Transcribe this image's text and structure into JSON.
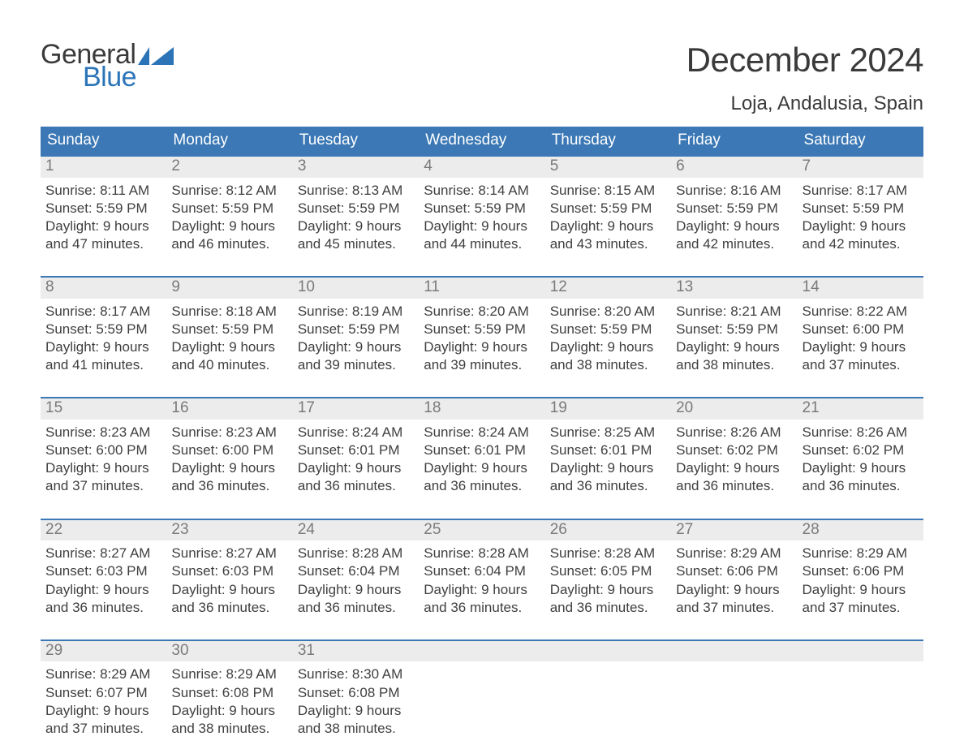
{
  "logo": {
    "word1": "General",
    "word2": "Blue",
    "text_color": "#3a3a3a",
    "blue_color": "#2b74b8",
    "flag_color": "#2b74b8"
  },
  "title": {
    "month_year": "December 2024",
    "location": "Loja, Andalusia, Spain",
    "title_fontsize": 42,
    "location_fontsize": 24,
    "text_color": "#3a3a3a"
  },
  "calendar": {
    "header_bg": "#3b78b5",
    "header_text_color": "#ffffff",
    "week_border_color": "#3b78b5",
    "daynum_bg": "#ececec",
    "daynum_color": "#7a7a7a",
    "body_text_color": "#3f3f3f",
    "days_of_week": [
      "Sunday",
      "Monday",
      "Tuesday",
      "Wednesday",
      "Thursday",
      "Friday",
      "Saturday"
    ],
    "weeks": [
      [
        {
          "n": "1",
          "sunrise": "Sunrise: 8:11 AM",
          "sunset": "Sunset: 5:59 PM",
          "dl1": "Daylight: 9 hours",
          "dl2": "and 47 minutes."
        },
        {
          "n": "2",
          "sunrise": "Sunrise: 8:12 AM",
          "sunset": "Sunset: 5:59 PM",
          "dl1": "Daylight: 9 hours",
          "dl2": "and 46 minutes."
        },
        {
          "n": "3",
          "sunrise": "Sunrise: 8:13 AM",
          "sunset": "Sunset: 5:59 PM",
          "dl1": "Daylight: 9 hours",
          "dl2": "and 45 minutes."
        },
        {
          "n": "4",
          "sunrise": "Sunrise: 8:14 AM",
          "sunset": "Sunset: 5:59 PM",
          "dl1": "Daylight: 9 hours",
          "dl2": "and 44 minutes."
        },
        {
          "n": "5",
          "sunrise": "Sunrise: 8:15 AM",
          "sunset": "Sunset: 5:59 PM",
          "dl1": "Daylight: 9 hours",
          "dl2": "and 43 minutes."
        },
        {
          "n": "6",
          "sunrise": "Sunrise: 8:16 AM",
          "sunset": "Sunset: 5:59 PM",
          "dl1": "Daylight: 9 hours",
          "dl2": "and 42 minutes."
        },
        {
          "n": "7",
          "sunrise": "Sunrise: 8:17 AM",
          "sunset": "Sunset: 5:59 PM",
          "dl1": "Daylight: 9 hours",
          "dl2": "and 42 minutes."
        }
      ],
      [
        {
          "n": "8",
          "sunrise": "Sunrise: 8:17 AM",
          "sunset": "Sunset: 5:59 PM",
          "dl1": "Daylight: 9 hours",
          "dl2": "and 41 minutes."
        },
        {
          "n": "9",
          "sunrise": "Sunrise: 8:18 AM",
          "sunset": "Sunset: 5:59 PM",
          "dl1": "Daylight: 9 hours",
          "dl2": "and 40 minutes."
        },
        {
          "n": "10",
          "sunrise": "Sunrise: 8:19 AM",
          "sunset": "Sunset: 5:59 PM",
          "dl1": "Daylight: 9 hours",
          "dl2": "and 39 minutes."
        },
        {
          "n": "11",
          "sunrise": "Sunrise: 8:20 AM",
          "sunset": "Sunset: 5:59 PM",
          "dl1": "Daylight: 9 hours",
          "dl2": "and 39 minutes."
        },
        {
          "n": "12",
          "sunrise": "Sunrise: 8:20 AM",
          "sunset": "Sunset: 5:59 PM",
          "dl1": "Daylight: 9 hours",
          "dl2": "and 38 minutes."
        },
        {
          "n": "13",
          "sunrise": "Sunrise: 8:21 AM",
          "sunset": "Sunset: 5:59 PM",
          "dl1": "Daylight: 9 hours",
          "dl2": "and 38 minutes."
        },
        {
          "n": "14",
          "sunrise": "Sunrise: 8:22 AM",
          "sunset": "Sunset: 6:00 PM",
          "dl1": "Daylight: 9 hours",
          "dl2": "and 37 minutes."
        }
      ],
      [
        {
          "n": "15",
          "sunrise": "Sunrise: 8:23 AM",
          "sunset": "Sunset: 6:00 PM",
          "dl1": "Daylight: 9 hours",
          "dl2": "and 37 minutes."
        },
        {
          "n": "16",
          "sunrise": "Sunrise: 8:23 AM",
          "sunset": "Sunset: 6:00 PM",
          "dl1": "Daylight: 9 hours",
          "dl2": "and 36 minutes."
        },
        {
          "n": "17",
          "sunrise": "Sunrise: 8:24 AM",
          "sunset": "Sunset: 6:01 PM",
          "dl1": "Daylight: 9 hours",
          "dl2": "and 36 minutes."
        },
        {
          "n": "18",
          "sunrise": "Sunrise: 8:24 AM",
          "sunset": "Sunset: 6:01 PM",
          "dl1": "Daylight: 9 hours",
          "dl2": "and 36 minutes."
        },
        {
          "n": "19",
          "sunrise": "Sunrise: 8:25 AM",
          "sunset": "Sunset: 6:01 PM",
          "dl1": "Daylight: 9 hours",
          "dl2": "and 36 minutes."
        },
        {
          "n": "20",
          "sunrise": "Sunrise: 8:26 AM",
          "sunset": "Sunset: 6:02 PM",
          "dl1": "Daylight: 9 hours",
          "dl2": "and 36 minutes."
        },
        {
          "n": "21",
          "sunrise": "Sunrise: 8:26 AM",
          "sunset": "Sunset: 6:02 PM",
          "dl1": "Daylight: 9 hours",
          "dl2": "and 36 minutes."
        }
      ],
      [
        {
          "n": "22",
          "sunrise": "Sunrise: 8:27 AM",
          "sunset": "Sunset: 6:03 PM",
          "dl1": "Daylight: 9 hours",
          "dl2": "and 36 minutes."
        },
        {
          "n": "23",
          "sunrise": "Sunrise: 8:27 AM",
          "sunset": "Sunset: 6:03 PM",
          "dl1": "Daylight: 9 hours",
          "dl2": "and 36 minutes."
        },
        {
          "n": "24",
          "sunrise": "Sunrise: 8:28 AM",
          "sunset": "Sunset: 6:04 PM",
          "dl1": "Daylight: 9 hours",
          "dl2": "and 36 minutes."
        },
        {
          "n": "25",
          "sunrise": "Sunrise: 8:28 AM",
          "sunset": "Sunset: 6:04 PM",
          "dl1": "Daylight: 9 hours",
          "dl2": "and 36 minutes."
        },
        {
          "n": "26",
          "sunrise": "Sunrise: 8:28 AM",
          "sunset": "Sunset: 6:05 PM",
          "dl1": "Daylight: 9 hours",
          "dl2": "and 36 minutes."
        },
        {
          "n": "27",
          "sunrise": "Sunrise: 8:29 AM",
          "sunset": "Sunset: 6:06 PM",
          "dl1": "Daylight: 9 hours",
          "dl2": "and 37 minutes."
        },
        {
          "n": "28",
          "sunrise": "Sunrise: 8:29 AM",
          "sunset": "Sunset: 6:06 PM",
          "dl1": "Daylight: 9 hours",
          "dl2": "and 37 minutes."
        }
      ],
      [
        {
          "n": "29",
          "sunrise": "Sunrise: 8:29 AM",
          "sunset": "Sunset: 6:07 PM",
          "dl1": "Daylight: 9 hours",
          "dl2": "and 37 minutes."
        },
        {
          "n": "30",
          "sunrise": "Sunrise: 8:29 AM",
          "sunset": "Sunset: 6:08 PM",
          "dl1": "Daylight: 9 hours",
          "dl2": "and 38 minutes."
        },
        {
          "n": "31",
          "sunrise": "Sunrise: 8:30 AM",
          "sunset": "Sunset: 6:08 PM",
          "dl1": "Daylight: 9 hours",
          "dl2": "and 38 minutes."
        },
        {
          "empty": true
        },
        {
          "empty": true
        },
        {
          "empty": true
        },
        {
          "empty": true
        }
      ]
    ]
  }
}
